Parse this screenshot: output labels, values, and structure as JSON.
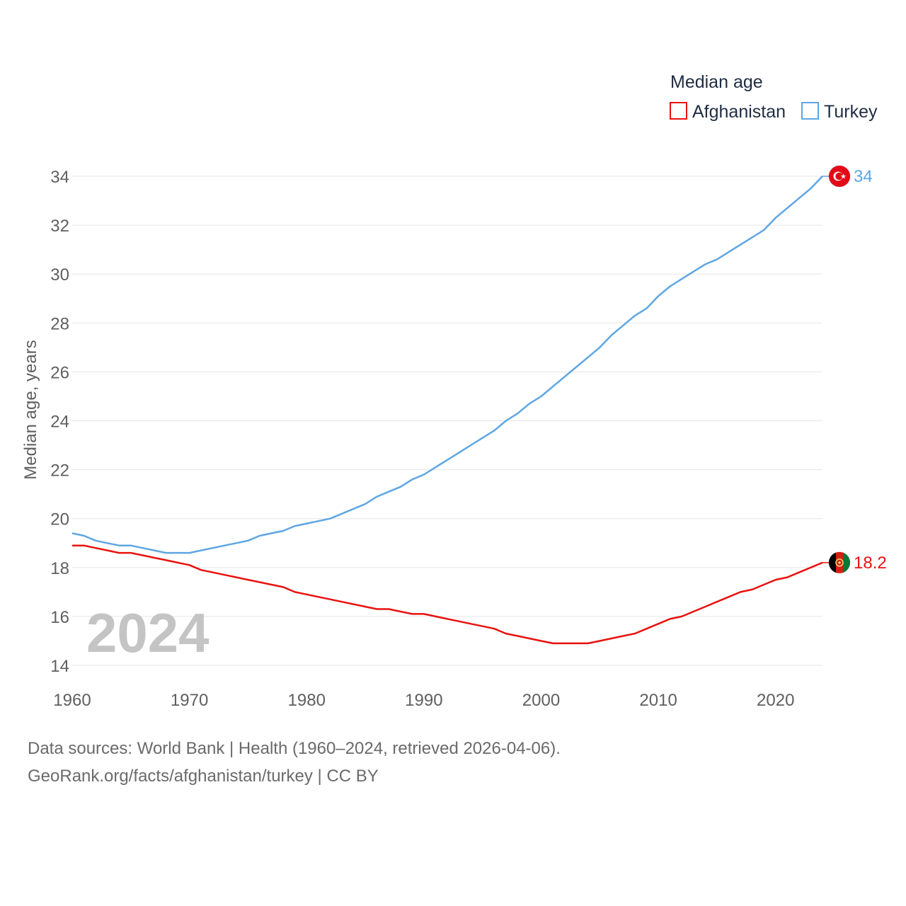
{
  "chart_data": {
    "type": "line",
    "legend_title": "Median age",
    "legend_position": "top-right",
    "ylabel": "Median age, years",
    "xlabel": "",
    "xlim": [
      1960,
      2024
    ],
    "ylim": [
      14,
      34
    ],
    "x_ticks": [
      1960,
      1970,
      1980,
      1990,
      2000,
      2010,
      2020
    ],
    "y_ticks": [
      14,
      16,
      18,
      20,
      22,
      24,
      26,
      28,
      30,
      32,
      34
    ],
    "grid": true,
    "year_label": "2024",
    "x": [
      1960,
      1961,
      1962,
      1963,
      1964,
      1965,
      1966,
      1967,
      1968,
      1969,
      1970,
      1971,
      1972,
      1973,
      1974,
      1975,
      1976,
      1977,
      1978,
      1979,
      1980,
      1981,
      1982,
      1983,
      1984,
      1985,
      1986,
      1987,
      1988,
      1989,
      1990,
      1991,
      1992,
      1993,
      1994,
      1995,
      1996,
      1997,
      1998,
      1999,
      2000,
      2001,
      2002,
      2003,
      2004,
      2005,
      2006,
      2007,
      2008,
      2009,
      2010,
      2011,
      2012,
      2013,
      2014,
      2015,
      2016,
      2017,
      2018,
      2019,
      2020,
      2021,
      2022,
      2023,
      2024
    ],
    "series": [
      {
        "name": "Afghanistan",
        "color": "#e8120f",
        "end_label": "18.2",
        "flag_icon": "afghanistan-flag-icon",
        "values": [
          18.9,
          18.9,
          18.8,
          18.7,
          18.6,
          18.6,
          18.5,
          18.4,
          18.3,
          18.2,
          18.1,
          17.9,
          17.8,
          17.7,
          17.6,
          17.5,
          17.4,
          17.3,
          17.2,
          17.0,
          16.9,
          16.8,
          16.7,
          16.6,
          16.5,
          16.4,
          16.3,
          16.3,
          16.2,
          16.1,
          16.1,
          16.0,
          15.9,
          15.8,
          15.7,
          15.6,
          15.5,
          15.3,
          15.2,
          15.1,
          15.0,
          14.9,
          14.9,
          14.9,
          14.9,
          15.0,
          15.1,
          15.2,
          15.3,
          15.5,
          15.7,
          15.9,
          16.0,
          16.2,
          16.4,
          16.6,
          16.8,
          17.0,
          17.1,
          17.3,
          17.5,
          17.6,
          17.8,
          18.0,
          18.2
        ]
      },
      {
        "name": "Turkey",
        "color": "#5ea6e3",
        "end_label": "34",
        "flag_icon": "turkey-flag-icon",
        "values": [
          19.4,
          19.3,
          19.1,
          19.0,
          18.9,
          18.9,
          18.8,
          18.7,
          18.6,
          18.6,
          18.6,
          18.7,
          18.8,
          18.9,
          19.0,
          19.1,
          19.3,
          19.4,
          19.5,
          19.7,
          19.8,
          19.9,
          20.0,
          20.2,
          20.4,
          20.6,
          20.9,
          21.1,
          21.3,
          21.6,
          21.8,
          22.1,
          22.4,
          22.7,
          23.0,
          23.3,
          23.6,
          24.0,
          24.3,
          24.7,
          25.0,
          25.4,
          25.8,
          26.2,
          26.6,
          27.0,
          27.5,
          27.9,
          28.3,
          28.6,
          29.1,
          29.5,
          29.8,
          30.1,
          30.4,
          30.6,
          30.9,
          31.2,
          31.5,
          31.8,
          32.3,
          32.7,
          33.1,
          33.5,
          34.0
        ]
      }
    ]
  },
  "source_line_1": "Data sources: World Bank | Health (1960–2024, retrieved 2026-04-06).",
  "source_line_2": "GeoRank.org/facts/afghanistan/turkey | CC BY"
}
